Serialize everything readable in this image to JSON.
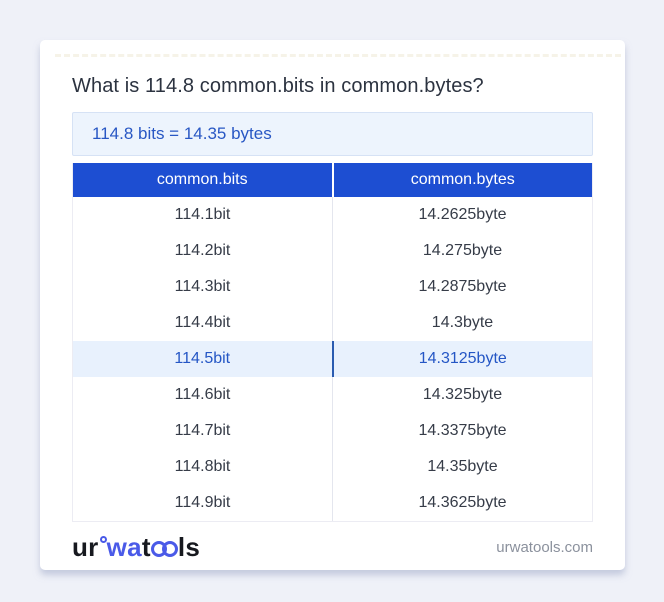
{
  "colors": {
    "page-bg": "#eff1f8",
    "accent": "#1d4ed2",
    "result-bg": "#edf4fd",
    "result-border": "#d6e2f5",
    "result-text": "#2857c4",
    "highlight-bg": "#e8f1fd",
    "highlight-text": "#2456c5",
    "highlight-divider": "#2a5bb0",
    "logo-blue": "#4a5ae8",
    "dash-color": "#f6f3e8"
  },
  "header": {
    "question": "What is 114.8 common.bits in common.bytes?"
  },
  "result": {
    "text": "114.8 bits = 14.35 bytes"
  },
  "table": {
    "columns": [
      "common.bits",
      "common.bytes"
    ],
    "rows": [
      {
        "bits": "114.1bit",
        "bytes": "14.2625byte",
        "highlighted": false
      },
      {
        "bits": "114.2bit",
        "bytes": "14.275byte",
        "highlighted": false
      },
      {
        "bits": "114.3bit",
        "bytes": "14.2875byte",
        "highlighted": false
      },
      {
        "bits": "114.4bit",
        "bytes": "14.3byte",
        "highlighted": false
      },
      {
        "bits": "114.5bit",
        "bytes": "14.3125byte",
        "highlighted": true
      },
      {
        "bits": "114.6bit",
        "bytes": "14.325byte",
        "highlighted": false
      },
      {
        "bits": "114.7bit",
        "bytes": "14.3375byte",
        "highlighted": false
      },
      {
        "bits": "114.8bit",
        "bytes": "14.35byte",
        "highlighted": false
      },
      {
        "bits": "114.9bit",
        "bytes": "14.3625byte",
        "highlighted": false
      }
    ]
  },
  "footer": {
    "logo": {
      "full_text": "urwatools",
      "seg_ur": "ur",
      "seg_wa": "wa",
      "seg_t": "t",
      "seg_oo": "oo",
      "seg_ls": "ls"
    },
    "domain": "urwatools.com"
  }
}
